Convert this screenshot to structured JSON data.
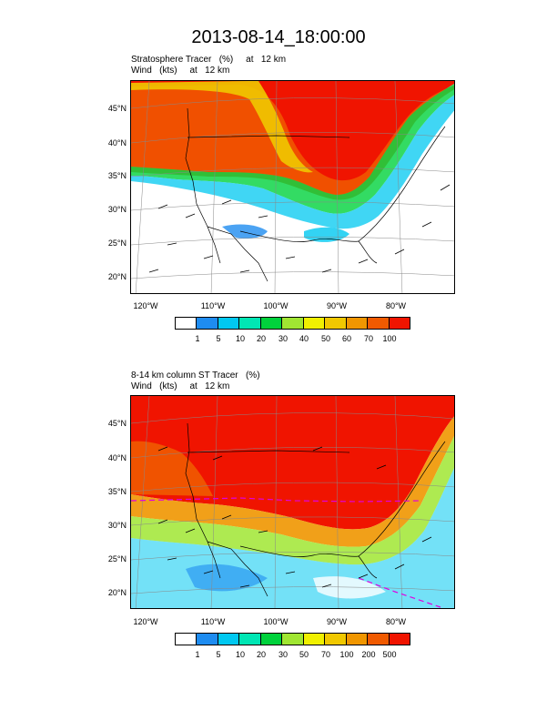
{
  "title": "2013-08-14_18:00:00",
  "panels": [
    {
      "subtitle_line1": "Stratosphere Tracer   (%)     at   12 km",
      "subtitle_line2": "Wind   (kts)     at   12 km",
      "lat_labels": [
        "45°N",
        "40°N",
        "35°N",
        "30°N",
        "25°N",
        "20°N"
      ],
      "lon_labels": [
        "120°W",
        "110°W",
        "100°W",
        "90°W",
        "80°W"
      ],
      "colorbar_labels": [
        "1",
        "5",
        "10",
        "20",
        "30",
        "40",
        "50",
        "60",
        "70",
        "100"
      ]
    },
    {
      "subtitle_line1": "8-14 km column ST Tracer   (%)",
      "subtitle_line2": "Wind   (kts)     at   12 km",
      "lat_labels": [
        "45°N",
        "40°N",
        "35°N",
        "30°N",
        "25°N",
        "20°N"
      ],
      "lon_labels": [
        "120°W",
        "110°W",
        "100°W",
        "90°W",
        "80°W"
      ],
      "colorbar_labels": [
        "1",
        "5",
        "10",
        "20",
        "30",
        "50",
        "70",
        "100",
        "200",
        "500"
      ]
    }
  ],
  "colorbar_colors": [
    "#ffffff",
    "#1e8cf0",
    "#00c8f0",
    "#00e6b4",
    "#00d23c",
    "#a0e632",
    "#f0f000",
    "#f0c800",
    "#f09600",
    "#f05a00",
    "#f01400"
  ]
}
